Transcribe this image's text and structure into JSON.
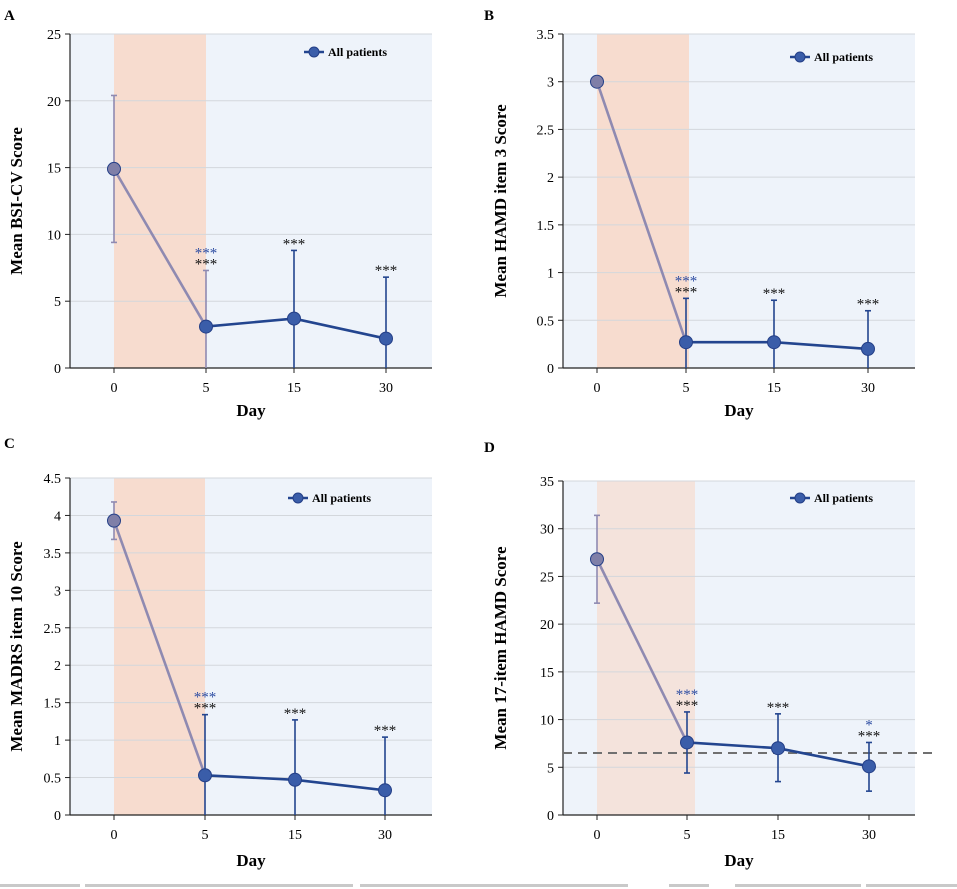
{
  "chart_data": [
    {
      "panel": "A",
      "type": "line",
      "x_categories": [
        "0",
        "5",
        "15",
        "30"
      ],
      "series": [
        {
          "name": "All patients",
          "values": [
            14.9,
            3.1,
            3.7,
            2.2
          ],
          "err_up": [
            20.4,
            7.3,
            8.8,
            6.8
          ],
          "err_low": [
            9.4,
            0,
            0,
            0
          ]
        }
      ],
      "ylim": [
        0,
        25
      ],
      "yticks": [
        0,
        5,
        10,
        15,
        20,
        25
      ],
      "xlabel": "Day",
      "ylabel": "Mean BSI-CV Score",
      "annotations": [
        {
          "x_index": 1,
          "top": "***",
          "bottom": "***"
        },
        {
          "x_index": 2,
          "bottom": "***"
        },
        {
          "x_index": 3,
          "bottom": "***"
        }
      ],
      "reference_line": null
    },
    {
      "panel": "B",
      "type": "line",
      "x_categories": [
        "0",
        "5",
        "15",
        "30"
      ],
      "series": [
        {
          "name": "All patients",
          "values": [
            3.0,
            0.27,
            0.27,
            0.2
          ],
          "err_up": [
            3.0,
            0.73,
            0.71,
            0.6
          ],
          "err_low": [
            3.0,
            0.0,
            0.0,
            0.0
          ]
        }
      ],
      "ylim": [
        0,
        3.5
      ],
      "yticks": [
        0,
        0.5,
        1,
        1.5,
        2,
        2.5,
        3,
        3.5
      ],
      "xlabel": "Day",
      "ylabel": "Mean HAMD item 3 Score",
      "annotations": [
        {
          "x_index": 1,
          "top": "***",
          "bottom": "***"
        },
        {
          "x_index": 2,
          "bottom": "***"
        },
        {
          "x_index": 3,
          "bottom": "***"
        }
      ],
      "reference_line": null
    },
    {
      "panel": "C",
      "type": "line",
      "x_categories": [
        "0",
        "5",
        "15",
        "30"
      ],
      "series": [
        {
          "name": "All patients",
          "values": [
            3.93,
            0.53,
            0.47,
            0.33
          ],
          "err_up": [
            4.18,
            1.34,
            1.27,
            1.04
          ],
          "err_low": [
            3.68,
            0,
            0,
            0
          ]
        }
      ],
      "ylim": [
        0,
        4.5
      ],
      "yticks": [
        0,
        0.5,
        1,
        1.5,
        2,
        2.5,
        3,
        3.5,
        4,
        4.5
      ],
      "xlabel": "Day",
      "ylabel": "Mean MADRS item 10 Score",
      "annotations": [
        {
          "x_index": 1,
          "top": "***",
          "bottom": "***"
        },
        {
          "x_index": 2,
          "bottom": "***"
        },
        {
          "x_index": 3,
          "bottom": "***"
        }
      ],
      "reference_line": null
    },
    {
      "panel": "D",
      "type": "line",
      "x_categories": [
        "0",
        "5",
        "15",
        "30"
      ],
      "series": [
        {
          "name": "All patients",
          "values": [
            26.8,
            7.6,
            7.0,
            5.1
          ],
          "err_up": [
            31.4,
            10.8,
            10.6,
            7.6
          ],
          "err_low": [
            22.2,
            4.4,
            3.5,
            2.5
          ]
        }
      ],
      "ylim": [
        0,
        35
      ],
      "yticks": [
        0,
        5,
        10,
        15,
        20,
        25,
        30,
        35
      ],
      "xlabel": "Day",
      "ylabel": "Mean 17-item HAMD Score",
      "annotations": [
        {
          "x_index": 1,
          "top": "***",
          "bottom": "***"
        },
        {
          "x_index": 2,
          "bottom": "***"
        },
        {
          "x_index": 3,
          "top": "*",
          "bottom": "***"
        }
      ],
      "reference_line": 6.5
    }
  ],
  "colors": {
    "plot_bg": "#eef3fa",
    "shade": "#f7dccf",
    "shade_d": "#f4e3dc",
    "grid": "#d3d7dc",
    "line_first": "#8f8ab1",
    "line_rest": "#23458f",
    "marker": "#3a5da9",
    "marker_edge": "#243f87",
    "marker_first": "#7f7fa8",
    "sig_blue": "#2f4ea3",
    "sig_black": "#111111",
    "ref_line": "#707070",
    "axis": "#222222"
  }
}
